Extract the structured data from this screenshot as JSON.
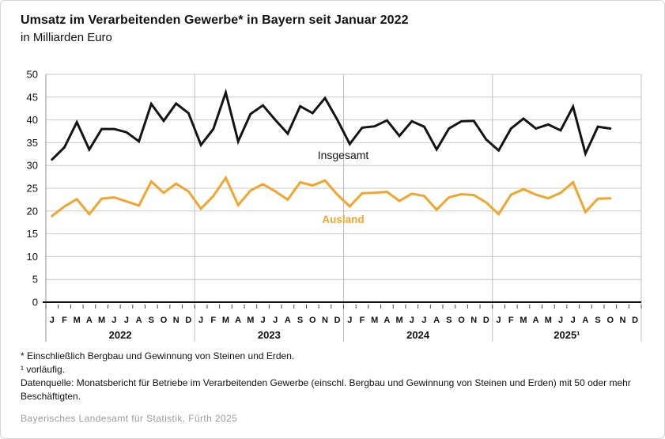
{
  "title": "Umsatz im Verarbeitenden Gewerbe* in Bayern seit Januar 2022",
  "subtitle": "in Milliarden Euro",
  "chart_data": {
    "type": "line",
    "title": "Umsatz im Verarbeitenden Gewerbe* in Bayern seit Januar 2022",
    "unit_label": "in Milliarden Euro",
    "ylim": [
      0,
      50
    ],
    "ytick_step": 5,
    "grid": true,
    "legend_position": "inline-labels",
    "month_letters": [
      "J",
      "F",
      "M",
      "A",
      "M",
      "J",
      "J",
      "A",
      "S",
      "O",
      "N",
      "D"
    ],
    "years": [
      "2022",
      "2023",
      "2024",
      "2025¹"
    ],
    "series": [
      {
        "name": "Insgesamt",
        "color": "#141414",
        "values": [
          31.3,
          34.0,
          39.5,
          33.5,
          38.0,
          38.0,
          37.3,
          35.3,
          43.5,
          39.8,
          43.6,
          41.5,
          34.5,
          38.0,
          46.0,
          35.3,
          41.3,
          43.2,
          40.0,
          37.0,
          43.0,
          41.5,
          44.8,
          40.0,
          34.7,
          38.3,
          38.6,
          39.9,
          36.5,
          39.7,
          38.5,
          33.5,
          38.1,
          39.7,
          39.8,
          35.7,
          33.3,
          38.1,
          40.3,
          38.1,
          39.0,
          37.7,
          42.9,
          32.6,
          38.5,
          38.1
        ]
      },
      {
        "name": "Ausland",
        "color": "#F2A42C",
        "values": [
          18.9,
          21.0,
          22.6,
          19.3,
          22.7,
          23.0,
          22.1,
          21.2,
          26.5,
          24.0,
          26.0,
          24.3,
          20.5,
          23.3,
          27.3,
          21.3,
          24.5,
          25.9,
          24.3,
          22.5,
          26.3,
          25.6,
          26.7,
          23.6,
          21.0,
          23.9,
          24.0,
          24.2,
          22.2,
          23.8,
          23.3,
          20.3,
          23.0,
          23.7,
          23.5,
          21.9,
          19.3,
          23.6,
          24.8,
          23.6,
          22.8,
          24.0,
          26.3,
          19.8,
          22.7,
          22.8
        ]
      }
    ]
  },
  "footnotes": [
    "* Einschließlich Bergbau und Gewinnung von Steinen und Erden.",
    "¹ vorläufig.",
    "Datenquelle: Monatsbericht für Betriebe im Verarbeitenden Gewerbe (einschl. Bergbau und Gewinnung von Steinen und Erden) mit 50 oder mehr Beschäftigten."
  ],
  "source": "Bayerisches Landesamt für Statistik, Fürth 2025"
}
